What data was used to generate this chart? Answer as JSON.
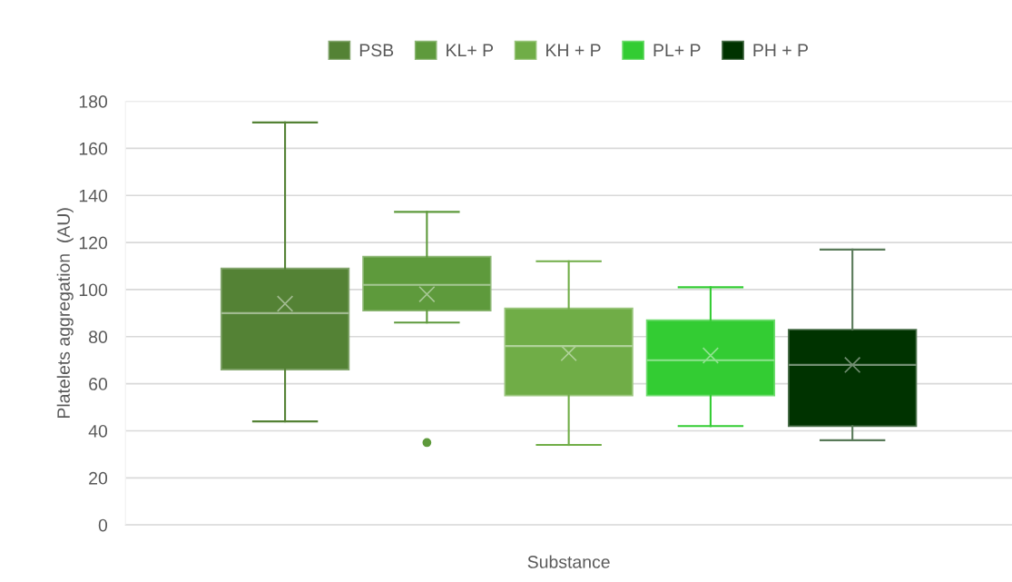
{
  "chart_data": {
    "type": "box",
    "ylabel": "Platelets aggregation  (AU)",
    "categories": [
      null
    ],
    "xlabel": "Substance",
    "ylim": [
      0,
      180
    ],
    "yticks": [
      0,
      20,
      40,
      60,
      80,
      100,
      120,
      140,
      160,
      180
    ],
    "grid": "y",
    "legend": "top",
    "marker": "cross",
    "series": [
      {
        "name": "PSB",
        "color": "#548235",
        "boxes": [
          {
            "low": 44,
            "q1": 66,
            "median": 90,
            "q3": 109,
            "high": 171,
            "mean": 94
          }
        ]
      },
      {
        "name": "KL+ P",
        "color": "#5e9a3c",
        "boxes": [
          {
            "low": 86,
            "q1": 91,
            "median": 102,
            "q3": 114,
            "high": 133,
            "mean": 98,
            "outliers": [
              35
            ]
          }
        ]
      },
      {
        "name": "KH + P",
        "color": "#70ad47",
        "boxes": [
          {
            "low": 34,
            "q1": 55,
            "median": 76,
            "q3": 92,
            "high": 112,
            "mean": 73
          }
        ]
      },
      {
        "name": "PL+ P",
        "color": "#33cc33",
        "boxes": [
          {
            "low": 42,
            "q1": 55,
            "median": 70,
            "q3": 87,
            "high": 101,
            "mean": 72
          }
        ]
      },
      {
        "name": "PH + P",
        "color": "#003300",
        "boxes": [
          {
            "low": 36,
            "q1": 42,
            "median": 68,
            "q3": 83,
            "high": 117,
            "mean": 68
          }
        ]
      }
    ]
  }
}
